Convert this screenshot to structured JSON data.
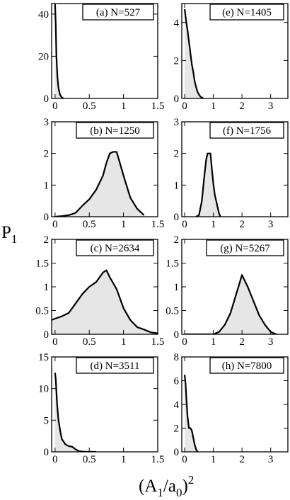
{
  "figure": {
    "ylabel_main": "P",
    "ylabel_sub": "1",
    "xlabel_open": "(A",
    "xlabel_sub1": "1",
    "xlabel_mid": "/a",
    "xlabel_sub0": "0",
    "xlabel_close": ")",
    "xlabel_sup": "2",
    "area_fill": "#e6e6e6",
    "line_color": "#000000"
  },
  "chart_data": [
    {
      "type": "area",
      "label": "(a) N=527",
      "xlim": [
        -0.05,
        1.5
      ],
      "ylim": [
        0,
        45
      ],
      "xticks": [
        0,
        0.5,
        1,
        1.5
      ],
      "xticklabels": [
        "0",
        "0.5",
        "1",
        "1.5"
      ],
      "yticks": [
        0,
        20,
        40
      ],
      "yticklabels": [
        "0",
        "20",
        "40"
      ],
      "x": [
        0.0,
        0.01,
        0.02,
        0.035,
        0.05,
        0.07,
        0.09,
        0.11,
        0.13
      ],
      "y": [
        45,
        35,
        20,
        10,
        5,
        2,
        0.8,
        0.2,
        0
      ]
    },
    {
      "type": "area",
      "label": "(e) N=1405",
      "xlim": [
        -0.1,
        3.6
      ],
      "ylim": [
        0,
        5
      ],
      "xticks": [
        0,
        1,
        2,
        3
      ],
      "xticklabels": [
        "0",
        "1",
        "2",
        "3"
      ],
      "yticks": [
        0,
        2,
        4
      ],
      "yticklabels": [
        "0",
        "2",
        "4"
      ],
      "x": [
        0.0,
        0.05,
        0.1,
        0.15,
        0.2,
        0.25,
        0.3,
        0.35,
        0.4,
        0.45,
        0.5,
        0.55,
        0.6,
        0.65
      ],
      "y": [
        4.7,
        4.1,
        3.6,
        3.0,
        2.4,
        1.8,
        1.4,
        0.9,
        0.6,
        0.35,
        0.2,
        0.1,
        0.05,
        0
      ]
    },
    {
      "type": "area",
      "label": "(b) N=1250",
      "xlim": [
        -0.05,
        1.5
      ],
      "ylim": [
        0,
        3
      ],
      "xticks": [
        0,
        0.5,
        1,
        1.5
      ],
      "xticklabels": [
        "0",
        "0.5",
        "1",
        "1.5"
      ],
      "yticks": [
        0,
        1,
        2,
        3
      ],
      "yticklabels": [
        "0",
        "1",
        "2",
        "3"
      ],
      "x": [
        0.0,
        0.1,
        0.2,
        0.3,
        0.4,
        0.5,
        0.6,
        0.7,
        0.75,
        0.8,
        0.85,
        0.9,
        1.0,
        1.1,
        1.2,
        1.3
      ],
      "y": [
        0.0,
        0.02,
        0.05,
        0.12,
        0.35,
        0.55,
        0.85,
        1.3,
        1.7,
        2.0,
        2.05,
        2.05,
        1.3,
        0.6,
        0.25,
        0.05
      ]
    },
    {
      "type": "area",
      "label": "(f) N=1756",
      "xlim": [
        -0.1,
        3.6
      ],
      "ylim": [
        0,
        3
      ],
      "xticks": [
        0,
        1,
        2,
        3
      ],
      "xticklabels": [
        "0",
        "1",
        "2",
        "3"
      ],
      "yticks": [
        0,
        1,
        2,
        3
      ],
      "yticklabels": [
        "0",
        "1",
        "2",
        "3"
      ],
      "x": [
        0.4,
        0.5,
        0.6,
        0.7,
        0.75,
        0.8,
        0.85,
        0.9,
        0.95,
        1.0,
        1.05,
        1.1,
        1.15,
        1.2,
        1.25
      ],
      "y": [
        0.0,
        0.05,
        0.5,
        1.4,
        1.8,
        2.0,
        2.0,
        2.0,
        1.5,
        1.05,
        0.7,
        0.5,
        0.3,
        0.1,
        0.0
      ]
    },
    {
      "type": "area",
      "label": "(c) N=2634",
      "xlim": [
        -0.05,
        1.5
      ],
      "ylim": [
        0,
        2
      ],
      "xticks": [
        0,
        0.5,
        1,
        1.5
      ],
      "xticklabels": [
        "0",
        "0.5",
        "1",
        "1.5"
      ],
      "yticks": [
        0,
        0.5,
        1,
        1.5,
        2
      ],
      "yticklabels": [
        "0",
        "0.5",
        "1",
        "1.5",
        "2"
      ],
      "x": [
        -0.05,
        0.0,
        0.1,
        0.2,
        0.3,
        0.4,
        0.5,
        0.6,
        0.7,
        0.75,
        0.8,
        0.9,
        1.0,
        1.1,
        1.2,
        1.3,
        1.4,
        1.5
      ],
      "y": [
        0.3,
        0.33,
        0.38,
        0.45,
        0.65,
        0.85,
        1.0,
        1.1,
        1.3,
        1.35,
        1.2,
        0.95,
        0.55,
        0.3,
        0.15,
        0.1,
        0.04,
        0.02
      ]
    },
    {
      "type": "area",
      "label": "(g) N=5267",
      "xlim": [
        -0.1,
        3.6
      ],
      "ylim": [
        0,
        2
      ],
      "xticks": [
        0,
        1,
        2,
        3
      ],
      "xticklabels": [
        "0",
        "1",
        "2",
        "3"
      ],
      "yticks": [
        0,
        0.5,
        1,
        1.5,
        2
      ],
      "yticklabels": [
        "0",
        "0.5",
        "1",
        "1.5",
        "2"
      ],
      "x": [
        0.0,
        0.5,
        1.0,
        1.2,
        1.4,
        1.6,
        1.8,
        2.0,
        2.2,
        2.4,
        2.6,
        2.8,
        3.0,
        3.2
      ],
      "y": [
        0.0,
        0.0,
        0.0,
        0.05,
        0.2,
        0.45,
        0.85,
        1.25,
        1.0,
        0.7,
        0.4,
        0.2,
        0.05,
        0.0
      ]
    },
    {
      "type": "area",
      "label": "(d) N=3511",
      "xlim": [
        -0.05,
        1.5
      ],
      "ylim": [
        0,
        15
      ],
      "xticks": [
        0,
        0.5,
        1,
        1.5
      ],
      "xticklabels": [
        "0",
        "0.5",
        "1",
        "1.5"
      ],
      "yticks": [
        0,
        5,
        10,
        15
      ],
      "yticklabels": [
        "0",
        "5",
        "10",
        "15"
      ],
      "x": [
        0.0,
        0.01,
        0.02,
        0.03,
        0.05,
        0.08,
        0.1,
        0.15,
        0.2,
        0.25,
        0.3,
        0.35,
        0.4,
        0.5,
        0.6
      ],
      "y": [
        12.5,
        11.5,
        9.5,
        7.5,
        5.0,
        3.0,
        2.0,
        1.2,
        0.9,
        0.8,
        0.4,
        0.1,
        0.05,
        0.0,
        0.0
      ]
    },
    {
      "type": "area",
      "label": "(h) N=7800",
      "xlim": [
        -0.1,
        3.6
      ],
      "ylim": [
        0,
        8
      ],
      "xticks": [
        0,
        1,
        2,
        3
      ],
      "xticklabels": [
        "0",
        "1",
        "2",
        "3"
      ],
      "yticks": [
        0,
        2,
        4,
        6,
        8
      ],
      "yticklabels": [
        "0",
        "2",
        "4",
        "6",
        "8"
      ],
      "x": [
        0.0,
        0.03,
        0.06,
        0.1,
        0.15,
        0.2,
        0.25,
        0.3,
        0.35,
        0.4,
        0.45
      ],
      "y": [
        6.5,
        5.8,
        4.5,
        3.0,
        2.0,
        2.0,
        1.8,
        1.2,
        0.6,
        0.2,
        0.0
      ]
    }
  ]
}
